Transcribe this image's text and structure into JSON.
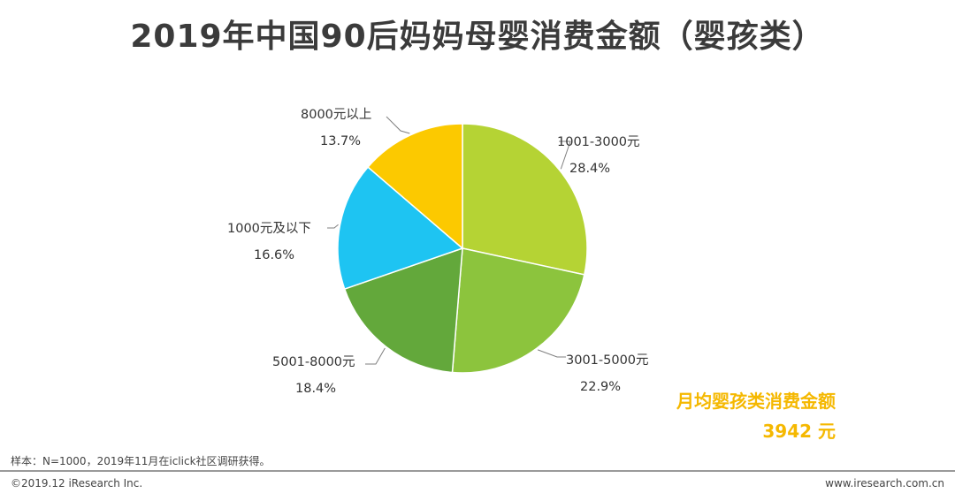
{
  "title": "2019年中国90后妈妈母婴消费金额（婴孩类）",
  "chart_data": {
    "type": "pie",
    "title": "2019年中国90后妈妈母婴消费金额（婴孩类）",
    "slices": [
      {
        "label": "1001-3000元",
        "value": 28.4,
        "value_label": "28.4%",
        "color": "#b5d334"
      },
      {
        "label": "3001-5000元",
        "value": 22.9,
        "value_label": "22.9%",
        "color": "#8cc43d"
      },
      {
        "label": "5001-8000元",
        "value": 18.4,
        "value_label": "18.4%",
        "color": "#63a83b"
      },
      {
        "label": "1000元及以下",
        "value": 16.6,
        "value_label": "16.6%",
        "color": "#1ec4f2"
      },
      {
        "label": "8000元以上",
        "value": 13.7,
        "value_label": "13.7%",
        "color": "#fcc900"
      }
    ]
  },
  "highlight": {
    "label": "月均婴孩类消费金额",
    "value": "3942 元",
    "color": "#f5b800"
  },
  "footer": {
    "note": "样本：N=1000，2019年11月在iclick社区调研获得。",
    "copyright": "©2019.12 iResearch Inc.",
    "website": "www.iresearch.com.cn"
  }
}
